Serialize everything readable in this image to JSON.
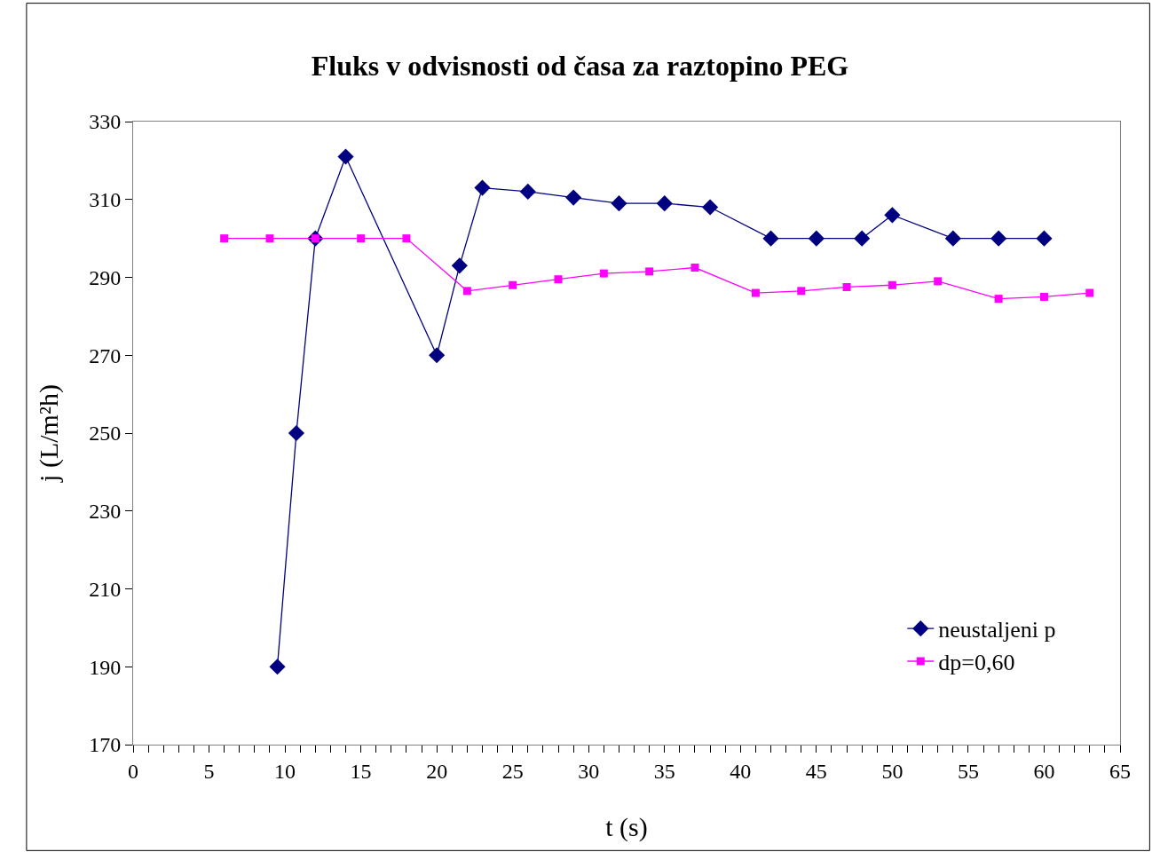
{
  "chart_data": {
    "type": "line",
    "title": "Fluks v odvisnosti od časa za raztopino PEG",
    "xlabel": "t (s)",
    "ylabel": "j (L/m²h)",
    "xlim": [
      0,
      65
    ],
    "xticks": [
      0,
      {
        "value": 1,
        "label": null
      },
      {
        "value": 2,
        "label": null
      },
      {
        "value": 3,
        "label": null
      },
      {
        "value": 4,
        "label": null
      },
      5,
      {
        "value": 6,
        "label": null
      },
      {
        "value": 7,
        "label": null
      },
      {
        "value": 8,
        "label": null
      },
      {
        "value": 9,
        "label": null
      },
      10,
      {
        "value": 11,
        "label": null
      },
      {
        "value": 12,
        "label": null
      },
      {
        "value": 13,
        "label": null
      },
      {
        "value": 14,
        "label": null
      },
      15,
      {
        "value": 16,
        "label": null
      },
      {
        "value": 17,
        "label": null
      },
      {
        "value": 18,
        "label": null
      },
      {
        "value": 19,
        "label": null
      },
      20,
      {
        "value": 21,
        "label": null
      },
      {
        "value": 22,
        "label": null
      },
      {
        "value": 23,
        "label": null
      },
      {
        "value": 24,
        "label": null
      },
      25,
      {
        "value": 26,
        "label": null
      },
      {
        "value": 27,
        "label": null
      },
      {
        "value": 28,
        "label": null
      },
      {
        "value": 29,
        "label": null
      },
      30,
      {
        "value": 31,
        "label": null
      },
      {
        "value": 32,
        "label": null
      },
      {
        "value": 33,
        "label": null
      },
      {
        "value": 34,
        "label": null
      },
      35,
      {
        "value": 36,
        "label": null
      },
      {
        "value": 37,
        "label": null
      },
      {
        "value": 38,
        "label": null
      },
      {
        "value": 39,
        "label": null
      },
      40,
      {
        "value": 41,
        "label": null
      },
      {
        "value": 42,
        "label": null
      },
      {
        "value": 43,
        "label": null
      },
      {
        "value": 44,
        "label": null
      },
      45,
      {
        "value": 46,
        "label": null
      },
      {
        "value": 47,
        "label": null
      },
      {
        "value": 48,
        "label": null
      },
      {
        "value": 49,
        "label": null
      },
      50,
      {
        "value": 51,
        "label": null
      },
      {
        "value": 52,
        "label": null
      },
      {
        "value": 53,
        "label": null
      },
      {
        "value": 54,
        "label": null
      },
      55,
      {
        "value": 56,
        "label": null
      },
      {
        "value": 57,
        "label": null
      },
      {
        "value": 58,
        "label": null
      },
      {
        "value": 59,
        "label": null
      },
      60,
      {
        "value": 61,
        "label": null
      },
      {
        "value": 62,
        "label": null
      },
      {
        "value": 63,
        "label": null
      },
      {
        "value": 64,
        "label": null
      },
      65
    ],
    "ylim": [
      170,
      330
    ],
    "yticks": [
      170,
      190,
      210,
      230,
      250,
      270,
      290,
      310,
      330
    ],
    "legend": "bottom right",
    "series": [
      {
        "name": "neustaljeni p",
        "color": "#000080",
        "marker": "diamond",
        "x": [
          9.5,
          10.75,
          12,
          14,
          20,
          21.5,
          23,
          26,
          29,
          32,
          35,
          38,
          42,
          45,
          48,
          50,
          54,
          57,
          60
        ],
        "values": [
          190,
          250,
          300,
          321,
          270,
          293,
          313,
          312,
          310.5,
          309,
          309,
          308,
          300,
          300,
          300,
          306,
          300,
          300,
          300
        ]
      },
      {
        "name": "dp=0,60",
        "color": "#ff00ff",
        "marker": "square",
        "x": [
          6,
          9,
          12,
          15,
          18,
          22,
          25,
          28,
          31,
          34,
          37,
          41,
          44,
          47,
          50,
          53,
          57,
          60,
          63
        ],
        "values": [
          300,
          300,
          300,
          300,
          300,
          286.5,
          288,
          289.5,
          291,
          291.5,
          292.5,
          286,
          286.5,
          287.5,
          288,
          289,
          284.5,
          285,
          286
        ]
      }
    ]
  }
}
